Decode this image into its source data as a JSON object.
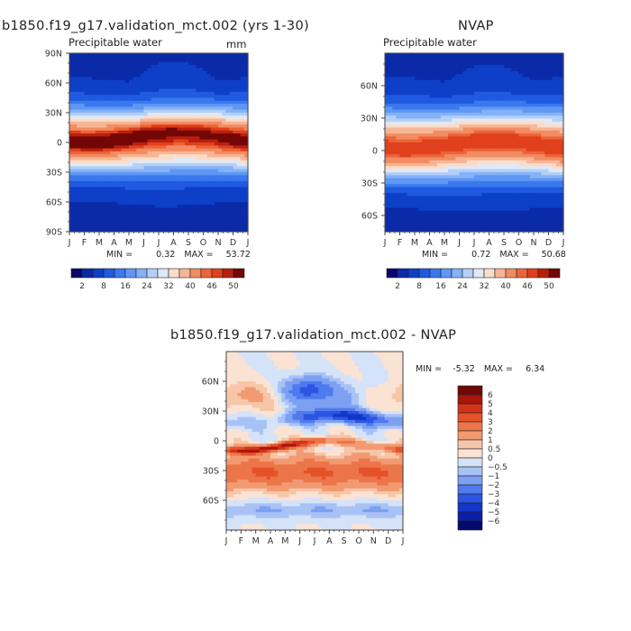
{
  "chart_data": [
    {
      "type": "heatmap",
      "title": "b1850.f19_g17.validation_mct.002 (yrs 1-30)",
      "subtitle": "Precipitable water",
      "units": "mm",
      "x_ticks": [
        "J",
        "F",
        "M",
        "A",
        "M",
        "J",
        "J",
        "A",
        "S",
        "O",
        "N",
        "D",
        "J"
      ],
      "y_ticks": [
        "90N",
        "60N",
        "30N",
        "0",
        "30S",
        "60S",
        "90S"
      ],
      "y_values": [
        90,
        60,
        30,
        0,
        -30,
        -60,
        -90
      ],
      "ylim": [
        -90,
        90
      ],
      "stats": {
        "min_label": "MIN =",
        "min": "0.32",
        "max_label": "MAX =",
        "max": "53.72"
      },
      "colorbar_ticks": [
        "2",
        "8",
        "16",
        "24",
        "32",
        "40",
        "46",
        "50"
      ],
      "levels": [
        2,
        4,
        8,
        12,
        16,
        20,
        24,
        28,
        32,
        36,
        40,
        44,
        46,
        48,
        50
      ],
      "colors": [
        "#08066e",
        "#0a2aa8",
        "#0d3fc8",
        "#1f5ae0",
        "#3a78ee",
        "#5f97f4",
        "#85b2f6",
        "#b4cff7",
        "#dfe9f7",
        "#fbdcc8",
        "#f6b696",
        "#f28c63",
        "#ec6439",
        "#e0401c",
        "#b8200d",
        "#730705"
      ],
      "field": "model",
      "value_range": [
        0.32,
        53.72
      ]
    },
    {
      "type": "heatmap",
      "title": "NVAP",
      "subtitle": "Precipitable water",
      "x_ticks": [
        "J",
        "F",
        "M",
        "A",
        "M",
        "J",
        "J",
        "A",
        "S",
        "O",
        "N",
        "D",
        "J"
      ],
      "y_ticks": [
        "60N",
        "30N",
        "0",
        "30S",
        "60S"
      ],
      "y_values": [
        60,
        30,
        0,
        -30,
        -60
      ],
      "ylim": [
        -75,
        90
      ],
      "stats": {
        "min_label": "MIN =",
        "min": "0.72",
        "max_label": "MAX =",
        "max": "50.68"
      },
      "colorbar_ticks": [
        "2",
        "8",
        "16",
        "24",
        "32",
        "40",
        "46",
        "50"
      ],
      "field": "obs",
      "value_range": [
        0.72,
        50.68
      ]
    },
    {
      "type": "heatmap",
      "title": "b1850.f19_g17.validation_mct.002 - NVAP",
      "x_ticks": [
        "J",
        "F",
        "M",
        "A",
        "M",
        "J",
        "J",
        "A",
        "S",
        "O",
        "N",
        "D",
        "J"
      ],
      "y_ticks": [
        "60N",
        "30N",
        "0",
        "30S",
        "60S"
      ],
      "y_values": [
        60,
        30,
        0,
        -30,
        -60
      ],
      "ylim": [
        -90,
        90
      ],
      "stats": {
        "min_label": "MIN =",
        "min": "-5.32",
        "max_label": "MAX =",
        "max": "6.34"
      },
      "colorbar_labels": [
        "6",
        "5",
        "4",
        "3",
        "2",
        "1",
        "0.5",
        "0",
        "−0.5",
        "−1",
        "−2",
        "−3",
        "−4",
        "−5",
        "−6"
      ],
      "diff_levels": [
        -6,
        -5,
        -4,
        -3,
        -2,
        -1,
        -0.5,
        0,
        0.5,
        1,
        2,
        3,
        4,
        5,
        6
      ],
      "diff_colors": [
        "#050a6e",
        "#0b20a6",
        "#1236c8",
        "#2b55e2",
        "#4f7aee",
        "#7da0f3",
        "#a9c2f6",
        "#d5e3f8",
        "#fbe3d4",
        "#f7c6a9",
        "#f29a71",
        "#ec7549",
        "#e5522a",
        "#d4321a",
        "#aa160b",
        "#730705"
      ],
      "field": "diff",
      "value_range": [
        -5.32,
        6.34
      ]
    }
  ]
}
